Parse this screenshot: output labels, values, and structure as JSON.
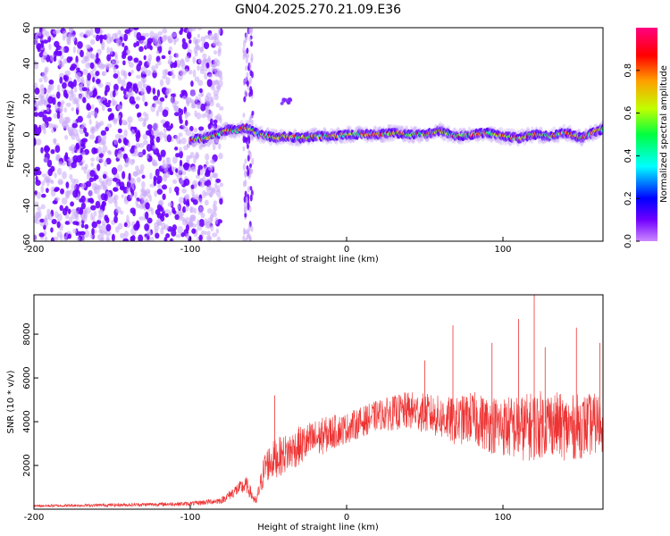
{
  "title": "GN04.2025.270.21.09.E36",
  "chart_data": [
    {
      "type": "heatmap",
      "xlabel": "Height of straight line (km)",
      "ylabel": "Frequency (Hz)",
      "xlim": [
        -200,
        164
      ],
      "ylim": [
        -60,
        60
      ],
      "xticks": [
        -200,
        -100,
        0,
        100
      ],
      "yticks": [
        -60,
        -40,
        -20,
        0,
        20,
        40,
        60
      ],
      "colorbar": {
        "label": "Normalized spectral amplitude",
        "range": [
          0,
          1
        ],
        "ticks": [
          0.0,
          0.2,
          0.4,
          0.6,
          0.8
        ],
        "colormap": [
          "#cc88ff",
          "#7000ff",
          "#0000ff",
          "#00ffff",
          "#00ff40",
          "#c0ff00",
          "#ffa000",
          "#ff0000",
          "#ff0080"
        ]
      },
      "noise_region_x": [
        -200,
        -80
      ],
      "gap_x": [
        -78,
        -66
      ],
      "noise_column_x": [
        -66,
        -60
      ],
      "blip": {
        "x": [
          -42,
          -34
        ],
        "y": [
          16,
          20
        ]
      },
      "ridge": {
        "x": [
          -100,
          -90,
          -80,
          -75,
          -70,
          -65,
          -60,
          -55,
          -50,
          -45,
          -40,
          -30,
          -20,
          -10,
          0,
          10,
          20,
          30,
          40,
          50,
          60,
          70,
          80,
          90,
          100,
          110,
          120,
          130,
          140,
          150,
          160,
          164
        ],
        "y": [
          -3,
          -2,
          1,
          3,
          2,
          4,
          2,
          0,
          -1,
          -2,
          -1,
          -2,
          -1,
          -1,
          0,
          0,
          0,
          1,
          0,
          0,
          2,
          -1,
          0,
          1,
          -1,
          -2,
          0,
          -1,
          1,
          -2,
          2,
          3
        ]
      }
    },
    {
      "type": "line",
      "xlabel": "Height of straight line (km)",
      "ylabel": "SNR (10 * v/v)",
      "xlim": [
        -200,
        164
      ],
      "ylim": [
        0,
        9800
      ],
      "xticks": [
        -200,
        -100,
        0,
        100
      ],
      "yticks": [
        2000,
        4000,
        6000,
        8000
      ],
      "line_color": "#ee3333",
      "envelope": {
        "x": [
          -200,
          -140,
          -100,
          -80,
          -70,
          -64,
          -58,
          -52,
          -46,
          -40,
          -30,
          -20,
          -10,
          0,
          10,
          20,
          30,
          40,
          50,
          60,
          70,
          80,
          90,
          100,
          110,
          120,
          130,
          140,
          150,
          160,
          164
        ],
        "center": [
          150,
          200,
          250,
          400,
          900,
          1100,
          300,
          2000,
          2300,
          2500,
          2900,
          3200,
          3500,
          3700,
          4000,
          4300,
          4400,
          4500,
          4400,
          4200,
          4000,
          4200,
          3900,
          3800,
          3700,
          3800,
          4000,
          3700,
          3800,
          3900,
          4000
        ],
        "spread": [
          60,
          80,
          100,
          150,
          300,
          400,
          200,
          800,
          900,
          900,
          900,
          900,
          800,
          700,
          700,
          700,
          800,
          900,
          900,
          1000,
          1100,
          1200,
          1300,
          1400,
          1500,
          1600,
          1500,
          1500,
          1500,
          1400,
          1400
        ]
      },
      "peaks": {
        "x": [
          -46,
          50,
          68,
          93,
          110,
          120,
          127,
          147,
          162
        ],
        "y": [
          5200,
          6800,
          8400,
          7600,
          8700,
          9800,
          7400,
          8300,
          7600
        ]
      }
    }
  ]
}
